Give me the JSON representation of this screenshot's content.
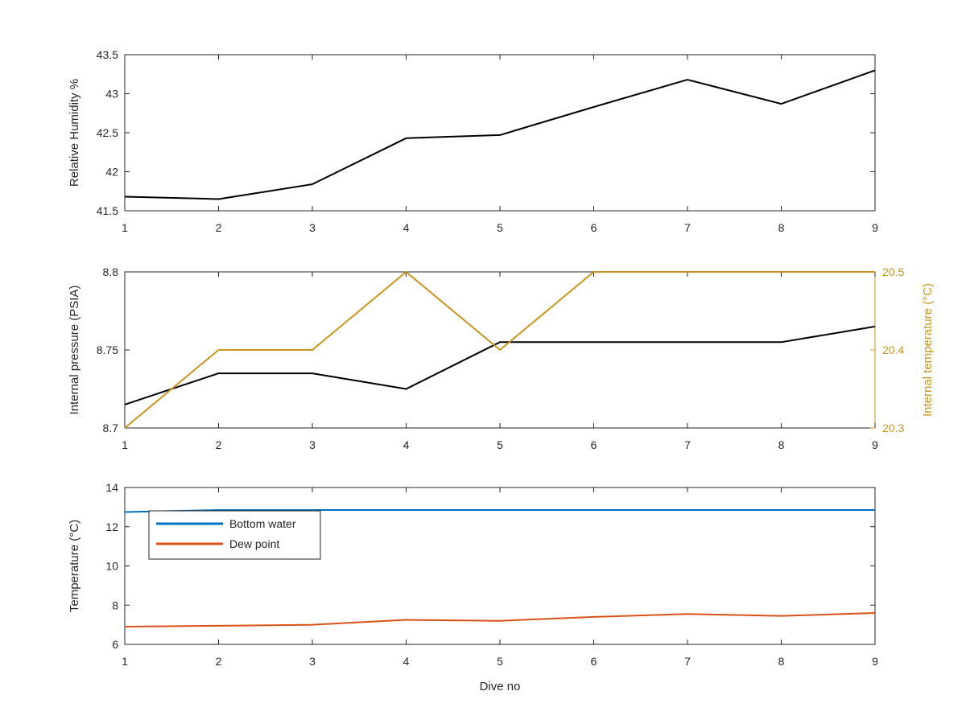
{
  "chart_data": [
    {
      "type": "line",
      "ylabel": "Relative Humidity %",
      "x": [
        1,
        2,
        3,
        4,
        5,
        6,
        7,
        8,
        9
      ],
      "xlim": [
        1,
        9
      ],
      "xticks": [
        "1",
        "2",
        "3",
        "4",
        "5",
        "6",
        "7",
        "8",
        "9"
      ],
      "ylim": [
        41.5,
        43.5
      ],
      "yticks": [
        "41.5",
        "42",
        "42.5",
        "43",
        "43.5"
      ],
      "series": [
        {
          "values": [
            41.68,
            41.65,
            41.84,
            42.43,
            42.47,
            42.83,
            43.18,
            42.87,
            43.3
          ],
          "color": "#000000"
        }
      ]
    },
    {
      "type": "line",
      "ylabel": "Internal pressure (PSIA)",
      "y2label": "Internal temperature (°C)",
      "x": [
        1,
        2,
        3,
        4,
        5,
        6,
        7,
        8,
        9
      ],
      "xlim": [
        1,
        9
      ],
      "xticks": [
        "1",
        "2",
        "3",
        "4",
        "5",
        "6",
        "7",
        "8",
        "9"
      ],
      "ylim": [
        8.7,
        8.8
      ],
      "yticks": [
        "8.7",
        "8.75",
        "8.8"
      ],
      "y2lim": [
        20.3,
        20.5
      ],
      "y2ticks": [
        "20.3",
        "20.4",
        "20.5"
      ],
      "series": [
        {
          "axis": "left",
          "values": [
            8.715,
            8.735,
            8.735,
            8.725,
            8.755,
            8.755,
            8.755,
            8.755,
            8.765
          ],
          "color": "#000000"
        },
        {
          "axis": "right",
          "values": [
            20.3,
            20.4,
            20.4,
            20.5,
            20.4,
            20.5,
            20.5,
            20.5,
            20.5
          ],
          "color": "#C8961E"
        }
      ]
    },
    {
      "type": "line",
      "xlabel": "Dive no",
      "ylabel": "Temperature (°C)",
      "x": [
        1,
        2,
        3,
        4,
        5,
        6,
        7,
        8,
        9
      ],
      "xlim": [
        1,
        9
      ],
      "xticks": [
        "1",
        "2",
        "3",
        "4",
        "5",
        "6",
        "7",
        "8",
        "9"
      ],
      "ylim": [
        6,
        14
      ],
      "yticks": [
        "6",
        "8",
        "10",
        "12",
        "14"
      ],
      "legend": "top-left",
      "series": [
        {
          "name": "Bottom water",
          "values": [
            12.75,
            12.85,
            12.85,
            12.85,
            12.85,
            12.85,
            12.85,
            12.85,
            12.85
          ],
          "color": "#0072BD"
        },
        {
          "name": "Dew point",
          "values": [
            6.9,
            6.95,
            7.0,
            7.25,
            7.2,
            7.4,
            7.55,
            7.45,
            7.6
          ],
          "color": "#D95319"
        }
      ]
    }
  ]
}
